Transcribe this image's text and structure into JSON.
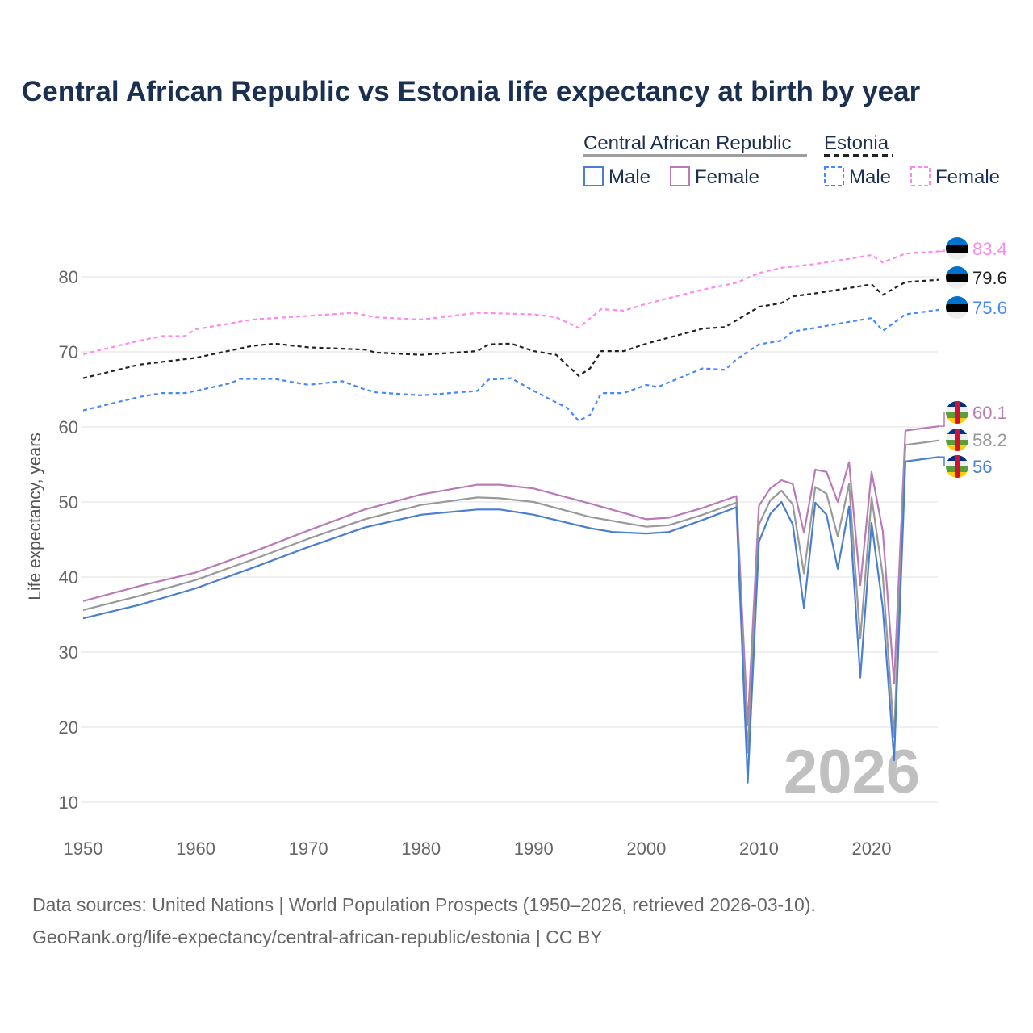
{
  "title": "Central African Republic vs Estonia life expectancy at birth by year",
  "legend": {
    "groups": [
      {
        "name": "Central African Republic",
        "style": "solid",
        "items": [
          "Male",
          "Female"
        ]
      },
      {
        "name": "Estonia",
        "style": "dashed",
        "items": [
          "Male",
          "Female"
        ]
      }
    ]
  },
  "watermark_year": "2026",
  "source_lines": [
    "Data sources: United Nations | World Population Prospects (1950–2026, retrieved 2026-03-10).",
    "GeoRank.org/life-expectancy/central-african-republic/estonia | CC BY"
  ],
  "chart_data": {
    "type": "line",
    "title": "Central African Republic vs Estonia life expectancy at birth by year",
    "xlabel": "",
    "ylabel": "Life expectancy, years",
    "xlim": [
      1950,
      2026
    ],
    "ylim": [
      10,
      85
    ],
    "xticks": [
      1950,
      1960,
      1970,
      1980,
      1990,
      2000,
      2010,
      2020
    ],
    "yticks": [
      10,
      20,
      30,
      40,
      50,
      60,
      70,
      80
    ],
    "grid": true,
    "series": [
      {
        "name": "Estonia Female",
        "country": "Estonia",
        "color": "#ff88ee",
        "dash": true,
        "end_label": "83.4",
        "points": [
          [
            1950,
            69.7
          ],
          [
            1955,
            71.5
          ],
          [
            1957,
            72.1
          ],
          [
            1959,
            72.1
          ],
          [
            1960,
            73
          ],
          [
            1965,
            74.3
          ],
          [
            1970,
            74.8
          ],
          [
            1974,
            75.2
          ],
          [
            1976,
            74.6
          ],
          [
            1980,
            74.3
          ],
          [
            1985,
            75.2
          ],
          [
            1990,
            75
          ],
          [
            1992,
            74.6
          ],
          [
            1994,
            73.2
          ],
          [
            1996,
            75.7
          ],
          [
            1998,
            75.5
          ],
          [
            2000,
            76.4
          ],
          [
            2005,
            78.3
          ],
          [
            2008,
            79.2
          ],
          [
            2010,
            80.5
          ],
          [
            2012,
            81.2
          ],
          [
            2015,
            81.7
          ],
          [
            2018,
            82.4
          ],
          [
            2020,
            82.9
          ],
          [
            2021,
            81.9
          ],
          [
            2023,
            83.1
          ],
          [
            2026,
            83.4
          ]
        ]
      },
      {
        "name": "Estonia",
        "country": "Estonia",
        "color": "#222222",
        "dash": true,
        "end_label": "79.6",
        "points": [
          [
            1950,
            66.5
          ],
          [
            1955,
            68.3
          ],
          [
            1960,
            69.2
          ],
          [
            1965,
            70.8
          ],
          [
            1967,
            71.1
          ],
          [
            1970,
            70.6
          ],
          [
            1975,
            70.3
          ],
          [
            1976,
            69.9
          ],
          [
            1980,
            69.6
          ],
          [
            1985,
            70.1
          ],
          [
            1986,
            71
          ],
          [
            1988,
            71.1
          ],
          [
            1990,
            70.1
          ],
          [
            1992,
            69.6
          ],
          [
            1994,
            66.8
          ],
          [
            1995,
            67.8
          ],
          [
            1996,
            70.1
          ],
          [
            1998,
            70.1
          ],
          [
            2000,
            71.1
          ],
          [
            2005,
            73.1
          ],
          [
            2007,
            73.3
          ],
          [
            2010,
            76
          ],
          [
            2012,
            76.5
          ],
          [
            2013,
            77.4
          ],
          [
            2015,
            77.8
          ],
          [
            2018,
            78.5
          ],
          [
            2020,
            79
          ],
          [
            2021,
            77.6
          ],
          [
            2023,
            79.3
          ],
          [
            2026,
            79.6
          ]
        ]
      },
      {
        "name": "Estonia Male",
        "country": "Estonia",
        "color": "#4488ff",
        "dash": true,
        "end_label": "75.6",
        "points": [
          [
            1950,
            62.2
          ],
          [
            1955,
            64
          ],
          [
            1957,
            64.5
          ],
          [
            1959,
            64.5
          ],
          [
            1960,
            64.8
          ],
          [
            1963,
            65.8
          ],
          [
            1964,
            66.4
          ],
          [
            1967,
            66.4
          ],
          [
            1970,
            65.6
          ],
          [
            1973,
            66.1
          ],
          [
            1975,
            65
          ],
          [
            1976,
            64.6
          ],
          [
            1980,
            64.2
          ],
          [
            1985,
            64.8
          ],
          [
            1986,
            66.3
          ],
          [
            1988,
            66.5
          ],
          [
            1990,
            64.8
          ],
          [
            1993,
            62.5
          ],
          [
            1994,
            60.8
          ],
          [
            1995,
            61.6
          ],
          [
            1996,
            64.5
          ],
          [
            1998,
            64.5
          ],
          [
            2000,
            65.6
          ],
          [
            2001,
            65.3
          ],
          [
            2005,
            67.8
          ],
          [
            2007,
            67.6
          ],
          [
            2008,
            69
          ],
          [
            2010,
            71
          ],
          [
            2012,
            71.5
          ],
          [
            2013,
            72.7
          ],
          [
            2015,
            73.2
          ],
          [
            2018,
            74
          ],
          [
            2020,
            74.5
          ],
          [
            2021,
            72.8
          ],
          [
            2023,
            75
          ],
          [
            2026,
            75.6
          ]
        ]
      },
      {
        "name": "Central African Republic Female",
        "country": "Central African Republic",
        "color": "#b87bb8",
        "dash": false,
        "end_label": "60.1",
        "points": [
          [
            1950,
            36.8
          ],
          [
            1955,
            38.8
          ],
          [
            1960,
            40.6
          ],
          [
            1965,
            43.3
          ],
          [
            1970,
            46.2
          ],
          [
            1975,
            49
          ],
          [
            1980,
            51
          ],
          [
            1985,
            52.3
          ],
          [
            1987,
            52.3
          ],
          [
            1990,
            51.8
          ],
          [
            1995,
            49.8
          ],
          [
            2000,
            47.7
          ],
          [
            2002,
            47.9
          ],
          [
            2005,
            49.2
          ],
          [
            2008,
            50.8
          ],
          [
            2009,
            20.3
          ],
          [
            2010,
            49.5
          ],
          [
            2011,
            51.8
          ],
          [
            2012,
            52.9
          ],
          [
            2013,
            52.4
          ],
          [
            2014,
            45.9
          ],
          [
            2015,
            54.3
          ],
          [
            2016,
            54
          ],
          [
            2017,
            50
          ],
          [
            2018,
            55.3
          ],
          [
            2019,
            38.9
          ],
          [
            2020,
            54
          ],
          [
            2021,
            46.1
          ],
          [
            2022,
            25.8
          ],
          [
            2023,
            59.5
          ],
          [
            2026,
            60.1
          ]
        ]
      },
      {
        "name": "Central African Republic",
        "country": "Central African Republic",
        "color": "#999999",
        "dash": false,
        "end_label": "58.2",
        "points": [
          [
            1950,
            35.6
          ],
          [
            1955,
            37.5
          ],
          [
            1960,
            39.6
          ],
          [
            1965,
            42.3
          ],
          [
            1970,
            45.1
          ],
          [
            1975,
            47.7
          ],
          [
            1980,
            49.6
          ],
          [
            1985,
            50.6
          ],
          [
            1987,
            50.5
          ],
          [
            1990,
            50
          ],
          [
            1995,
            48
          ],
          [
            2000,
            46.7
          ],
          [
            2002,
            46.9
          ],
          [
            2005,
            48.3
          ],
          [
            2008,
            49.9
          ],
          [
            2009,
            16.6
          ],
          [
            2010,
            47
          ],
          [
            2011,
            50.2
          ],
          [
            2012,
            51.5
          ],
          [
            2013,
            49.7
          ],
          [
            2014,
            40.5
          ],
          [
            2015,
            52
          ],
          [
            2016,
            51.1
          ],
          [
            2017,
            45.4
          ],
          [
            2018,
            52.4
          ],
          [
            2019,
            31.8
          ],
          [
            2020,
            50.6
          ],
          [
            2021,
            40.2
          ],
          [
            2022,
            18.7
          ],
          [
            2023,
            57.6
          ],
          [
            2026,
            58.2
          ]
        ]
      },
      {
        "name": "Central African Republic Male",
        "country": "Central African Republic",
        "color": "#4a7fcf",
        "dash": false,
        "end_label": "56",
        "points": [
          [
            1950,
            34.5
          ],
          [
            1955,
            36.3
          ],
          [
            1960,
            38.5
          ],
          [
            1965,
            41.2
          ],
          [
            1970,
            44
          ],
          [
            1975,
            46.6
          ],
          [
            1980,
            48.3
          ],
          [
            1985,
            49
          ],
          [
            1987,
            49
          ],
          [
            1990,
            48.3
          ],
          [
            1995,
            46.5
          ],
          [
            1997,
            46
          ],
          [
            2000,
            45.8
          ],
          [
            2002,
            46
          ],
          [
            2005,
            47.6
          ],
          [
            2008,
            49.3
          ],
          [
            2009,
            12.6
          ],
          [
            2010,
            44.7
          ],
          [
            2011,
            48.4
          ],
          [
            2012,
            50
          ],
          [
            2013,
            47
          ],
          [
            2014,
            35.9
          ],
          [
            2015,
            49.9
          ],
          [
            2016,
            48.3
          ],
          [
            2017,
            41.1
          ],
          [
            2018,
            49.4
          ],
          [
            2019,
            26.6
          ],
          [
            2020,
            47.2
          ],
          [
            2021,
            35.9
          ],
          [
            2022,
            15.6
          ],
          [
            2023,
            55.4
          ],
          [
            2026,
            56
          ]
        ]
      }
    ]
  }
}
